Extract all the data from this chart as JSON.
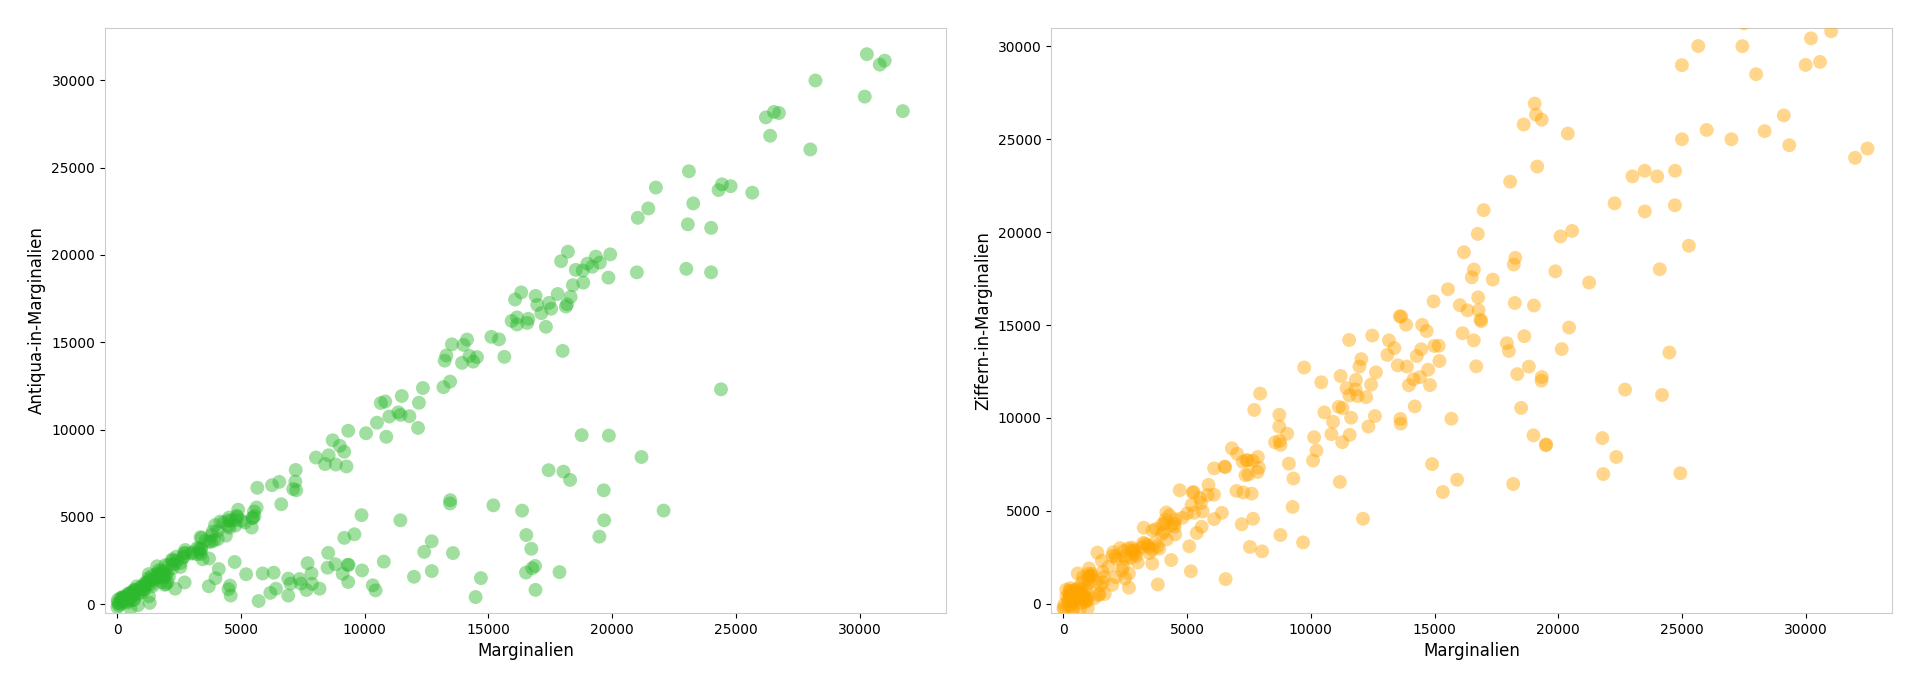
{
  "left_xlabel": "Marginalien",
  "left_ylabel": "Antiqua-in-Marginalien",
  "right_xlabel": "Marginalien",
  "right_ylabel": "Ziffern-in-Marginalien",
  "green_color": "#2db92d",
  "orange_color": "#ffa500",
  "alpha": 0.45,
  "marker_size": 100,
  "xlim": [
    -500,
    33500
  ],
  "ylim_left": [
    -500,
    33000
  ],
  "ylim_right": [
    -500,
    31000
  ],
  "xticks": [
    0,
    5000,
    10000,
    15000,
    20000,
    25000,
    30000
  ],
  "yticks_left": [
    0,
    5000,
    10000,
    15000,
    20000,
    25000,
    30000
  ],
  "yticks_right": [
    0,
    5000,
    10000,
    15000,
    20000,
    25000,
    30000
  ],
  "seed_green": 7,
  "seed_orange": 13,
  "n_main": 220,
  "n_out": 80
}
